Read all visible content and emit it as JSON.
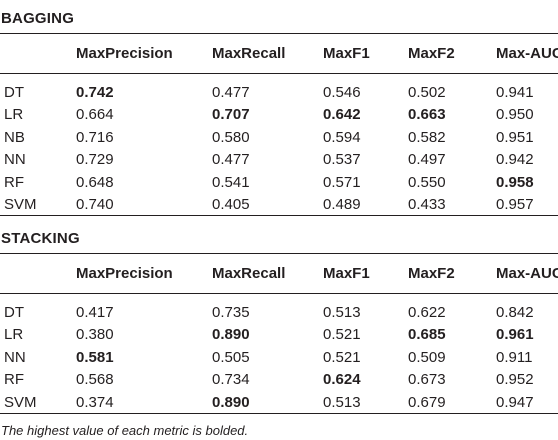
{
  "sections": [
    {
      "title": "BAGGING",
      "headers": [
        "",
        "MaxPrecision",
        "MaxRecall",
        "MaxF1",
        "MaxF2",
        "Max-AUC"
      ],
      "rows": [
        {
          "model": "DT",
          "values": [
            "0.742",
            "0.477",
            "0.546",
            "0.502",
            "0.941"
          ],
          "bold": [
            true,
            false,
            false,
            false,
            false
          ]
        },
        {
          "model": "LR",
          "values": [
            "0.664",
            "0.707",
            "0.642",
            "0.663",
            "0.950"
          ],
          "bold": [
            false,
            true,
            true,
            true,
            false
          ]
        },
        {
          "model": "NB",
          "values": [
            "0.716",
            "0.580",
            "0.594",
            "0.582",
            "0.951"
          ],
          "bold": [
            false,
            false,
            false,
            false,
            false
          ]
        },
        {
          "model": "NN",
          "values": [
            "0.729",
            "0.477",
            "0.537",
            "0.497",
            "0.942"
          ],
          "bold": [
            false,
            false,
            false,
            false,
            false
          ]
        },
        {
          "model": "RF",
          "values": [
            "0.648",
            "0.541",
            "0.571",
            "0.550",
            "0.958"
          ],
          "bold": [
            false,
            false,
            false,
            false,
            true
          ]
        },
        {
          "model": "SVM",
          "values": [
            "0.740",
            "0.405",
            "0.489",
            "0.433",
            "0.957"
          ],
          "bold": [
            false,
            false,
            false,
            false,
            false
          ]
        }
      ]
    },
    {
      "title": "STACKING",
      "headers": [
        "",
        "MaxPrecision",
        "MaxRecall",
        "MaxF1",
        "MaxF2",
        "Max-AUC"
      ],
      "rows": [
        {
          "model": "DT",
          "values": [
            "0.417",
            "0.735",
            "0.513",
            "0.622",
            "0.842"
          ],
          "bold": [
            false,
            false,
            false,
            false,
            false
          ]
        },
        {
          "model": "LR",
          "values": [
            "0.380",
            "0.890",
            "0.521",
            "0.685",
            "0.961"
          ],
          "bold": [
            false,
            true,
            false,
            true,
            true
          ]
        },
        {
          "model": "NN",
          "values": [
            "0.581",
            "0.505",
            "0.521",
            "0.509",
            "0.911"
          ],
          "bold": [
            true,
            false,
            false,
            false,
            false
          ]
        },
        {
          "model": "RF",
          "values": [
            "0.568",
            "0.734",
            "0.624",
            "0.673",
            "0.952"
          ],
          "bold": [
            false,
            false,
            true,
            false,
            false
          ]
        },
        {
          "model": "SVM",
          "values": [
            "0.374",
            "0.890",
            "0.513",
            "0.679",
            "0.947"
          ],
          "bold": [
            false,
            true,
            false,
            false,
            false
          ]
        }
      ]
    }
  ],
  "footnote": "The highest value of each metric is bolded."
}
